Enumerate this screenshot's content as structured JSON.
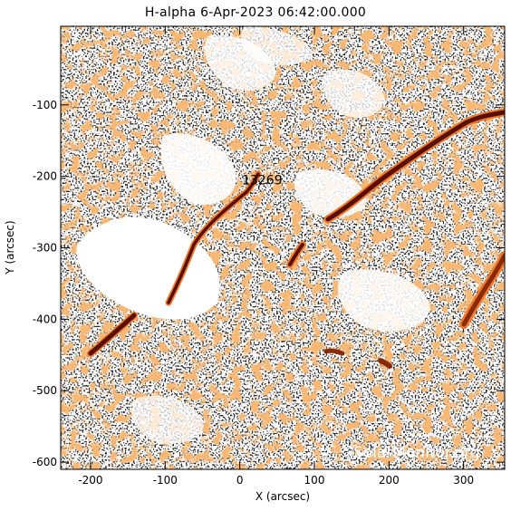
{
  "title": "H-alpha   6-Apr-2023 06:42:00.000",
  "xlabel": "X (arcsec)",
  "ylabel": "Y (arcsec)",
  "xlim": [
    -240,
    355
  ],
  "ylim": [
    -610,
    10
  ],
  "xticks": [
    -200,
    -100,
    0,
    100,
    200,
    300
  ],
  "yticks": [
    -100,
    -200,
    -300,
    -400,
    -500,
    -600
  ],
  "region_label": {
    "text": "13269",
    "x": 30,
    "y": -205
  },
  "watermark": "SolarMonitor.org",
  "colors": {
    "orange": "#f07a2c",
    "dark": "#5a0f03",
    "black": "#000000",
    "background": "#ffffff"
  }
}
